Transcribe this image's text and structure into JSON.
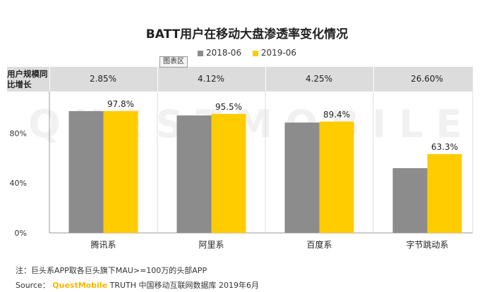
{
  "chart_data": {
    "type": "bar",
    "title": "BATT用户在移动大盘渗透率变化情况",
    "categories": [
      "腾讯系",
      "阿里系",
      "百度系",
      "字节跳动系"
    ],
    "series": [
      {
        "name": "2018-06",
        "color": "#8c8c8c",
        "values": [
          97.8,
          94.3,
          88.6,
          52.0
        ]
      },
      {
        "name": "2019-06",
        "color": "#ffcc00",
        "values": [
          97.8,
          95.5,
          89.4,
          63.3
        ]
      }
    ],
    "data_labels": [
      "97.8%",
      "95.5%",
      "89.4%",
      "63.3%"
    ],
    "y_ticks": [
      "0%",
      "40%",
      "80%"
    ],
    "ylim": [
      0,
      100
    ],
    "grid": false,
    "legend_position": "top-center",
    "growth_row": {
      "label": "用户规模同比增长",
      "values": [
        "2.85%",
        "4.12%",
        "4.25%",
        "26.60%"
      ]
    }
  },
  "tooltip_tag": "图表区",
  "watermark": "QUESTMOBILE",
  "notes": {
    "note1": "注：巨头系APP取各巨头旗下MAU>=100万的头部APP",
    "source_prefix": "Source：",
    "source_brand": "QuestMobile",
    "source_rest": " TRUTH 中国移动互联网数据库 2019年6月"
  }
}
